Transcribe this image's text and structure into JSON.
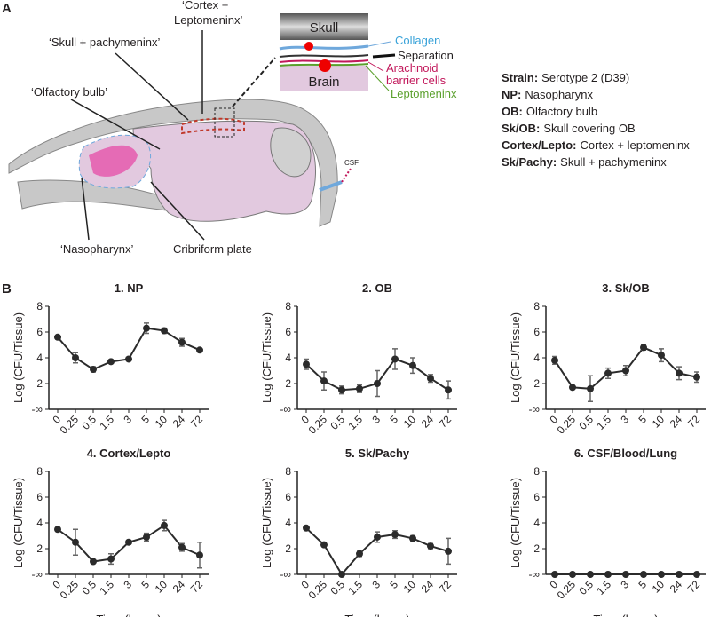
{
  "panels": {
    "a": "A",
    "b": "B"
  },
  "diagram": {
    "cortex_label": [
      "‘Cortex +",
      "Leptomeninx’"
    ],
    "skull_pachy_label": "‘Skull + pachymeninx’",
    "olfactory_label": "‘Olfactory bulb’",
    "nasopharynx_label": "‘Nasopharynx’",
    "cribriform_label": "Cribriform plate",
    "csf_label": "CSF",
    "inset": {
      "skull": "Skull",
      "brain": "Brain",
      "collagen": "Collagen",
      "separation": "Separation",
      "arachnoid": [
        "Arachnoid",
        "barrier cells"
      ],
      "leptomeninx": "Leptomeninx"
    }
  },
  "legend": [
    {
      "key": "Strain:",
      "text": "Serotype 2 (D39)"
    },
    {
      "key": "NP:",
      "text": "Nasopharynx"
    },
    {
      "key": "OB:",
      "text": "Olfactory bulb"
    },
    {
      "key": "Sk/OB:",
      "text": "Skull covering OB"
    },
    {
      "key": "Cortex/Lepto:",
      "text": "Cortex + leptomeninx"
    },
    {
      "key": "Sk/Pachy:",
      "text": "Skull + pachymeninx"
    }
  ],
  "chart_data": [
    {
      "type": "line",
      "title": "1. NP",
      "y_label": "Log (CFU/Tissue)",
      "categories": [
        "0",
        "0.25",
        "0.5",
        "1.5",
        "3",
        "5",
        "10",
        "24",
        "72"
      ],
      "values": [
        5.6,
        4.0,
        3.1,
        3.7,
        3.9,
        6.3,
        6.1,
        5.2,
        4.6
      ],
      "errors": [
        0.1,
        0.4,
        0.2,
        0.1,
        0.1,
        0.4,
        0.2,
        0.3,
        0.1
      ],
      "color": "#2b2b2b",
      "ylim": [
        0,
        8
      ],
      "yticks": [
        {
          "value": 0,
          "label": "-∞"
        },
        2,
        4,
        6,
        8
      ]
    },
    {
      "type": "line",
      "title": "2. OB",
      "y_label": "Log (CFU/Tissue)",
      "categories": [
        "0",
        "0.25",
        "0.5",
        "1.5",
        "3",
        "5",
        "10",
        "24",
        "72"
      ],
      "values": [
        3.5,
        2.2,
        1.5,
        1.6,
        2.0,
        3.9,
        3.4,
        2.4,
        1.5
      ],
      "errors": [
        0.4,
        0.7,
        0.3,
        0.3,
        1.0,
        0.8,
        0.6,
        0.3,
        0.7
      ],
      "color": "#2b2b2b",
      "ylim": [
        0,
        8
      ],
      "yticks": [
        {
          "value": 0,
          "label": "-∞"
        },
        2,
        4,
        6,
        8
      ]
    },
    {
      "type": "line",
      "title": "3. Sk/OB",
      "y_label": "Log (CFU/Tissue)",
      "categories": [
        "0",
        "0.25",
        "0.5",
        "1.5",
        "3",
        "5",
        "10",
        "24",
        "72"
      ],
      "values": [
        3.8,
        1.7,
        1.6,
        2.8,
        3.0,
        4.8,
        4.2,
        2.8,
        2.5
      ],
      "errors": [
        0.3,
        0.1,
        1.0,
        0.4,
        0.4,
        0.2,
        0.5,
        0.5,
        0.4
      ],
      "color": "#2b2b2b",
      "ylim": [
        0,
        8
      ],
      "yticks": [
        {
          "value": 0,
          "label": "-∞"
        },
        2,
        4,
        6,
        8
      ]
    },
    {
      "type": "line",
      "title": "4. Cortex/Lepto",
      "y_label": "Log (CFU/Tissue)",
      "x_label": "Time (hours)",
      "categories": [
        "0",
        "0.25",
        "0.5",
        "1.5",
        "3",
        "5",
        "10",
        "24",
        "72"
      ],
      "values": [
        3.5,
        2.5,
        1.0,
        1.2,
        2.5,
        2.9,
        3.8,
        2.1,
        1.5
      ],
      "errors": [
        0.1,
        1.0,
        0.1,
        0.4,
        0.1,
        0.3,
        0.4,
        0.3,
        1.0
      ],
      "color": "#2b2b2b",
      "ylim": [
        0,
        8
      ],
      "yticks": [
        {
          "value": 0,
          "label": "-∞"
        },
        2,
        4,
        6,
        8
      ]
    },
    {
      "type": "line",
      "title": "5. Sk/Pachy",
      "y_label": "Log (CFU/Tissue)",
      "x_label": "Time (hours)",
      "categories": [
        "0",
        "0.25",
        "0.5",
        "1.5",
        "3",
        "5",
        "10",
        "24",
        "72"
      ],
      "values": [
        3.6,
        2.3,
        0,
        1.6,
        2.9,
        3.1,
        2.8,
        2.2,
        1.8
      ],
      "errors": [
        0.1,
        0.1,
        0,
        0.2,
        0.4,
        0.3,
        0.2,
        0.2,
        1.0
      ],
      "color": "#2b2b2b",
      "ylim": [
        0,
        8
      ],
      "yticks": [
        {
          "value": 0,
          "label": "-∞"
        },
        2,
        4,
        6,
        8
      ]
    },
    {
      "type": "line",
      "title": "6. CSF/Blood/Lung",
      "y_label": "Log (CFU/Tissue)",
      "x_label": "Time (hours)",
      "categories": [
        "0",
        "0.25",
        "0.5",
        "1.5",
        "3",
        "5",
        "10",
        "24",
        "72"
      ],
      "values": [
        0,
        0,
        0,
        0,
        0,
        0,
        0,
        0,
        0
      ],
      "errors": [
        0,
        0,
        0,
        0,
        0,
        0,
        0,
        0,
        0
      ],
      "color": "#2b2b2b",
      "ylim": [
        0,
        8
      ],
      "yticks": [
        {
          "value": 0,
          "label": "-∞"
        },
        2,
        4,
        6,
        8
      ]
    }
  ]
}
